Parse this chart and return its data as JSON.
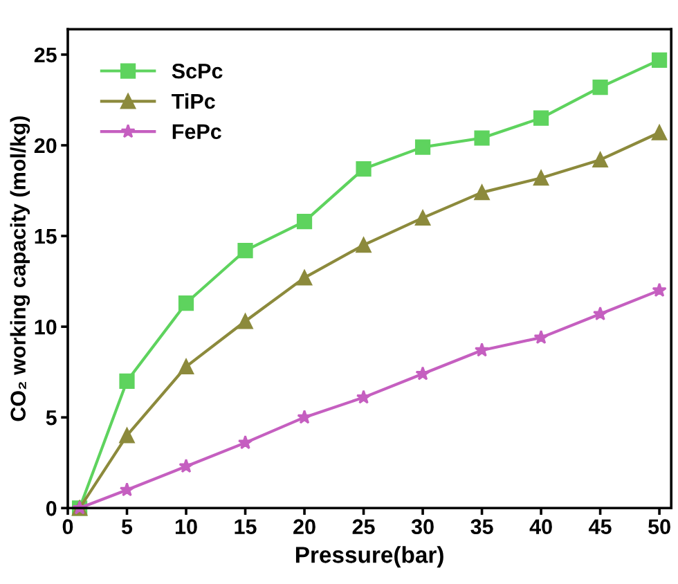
{
  "chart_data": {
    "type": "line",
    "xlabel": "Pressure(bar)",
    "ylabel": "CO₂ working capacity (mol/kg)",
    "xlim": [
      0,
      51
    ],
    "ylim": [
      0,
      26.4
    ],
    "xticks": [
      0,
      5,
      10,
      15,
      20,
      25,
      30,
      35,
      40,
      45,
      50
    ],
    "yticks": [
      0,
      5,
      10,
      15,
      20,
      25
    ],
    "grid": false,
    "legend": "top left",
    "line_style": "solid",
    "x": [
      1,
      5,
      10,
      15,
      20,
      25,
      30,
      35,
      40,
      45,
      50
    ],
    "series": [
      {
        "name": "ScPc",
        "color": "#5ed35e",
        "marker": "square",
        "values": [
          0,
          7.0,
          11.3,
          14.2,
          15.8,
          18.7,
          19.9,
          20.4,
          21.5,
          23.2,
          24.7
        ]
      },
      {
        "name": "TiPc",
        "color": "#8c8a3c",
        "marker": "triangle",
        "values": [
          0,
          4.0,
          7.8,
          10.3,
          12.7,
          14.5,
          16.0,
          17.4,
          18.2,
          19.2,
          20.7
        ]
      },
      {
        "name": "FePc",
        "color": "#c55fc0",
        "marker": "star",
        "values": [
          0,
          1.0,
          2.3,
          3.6,
          5.0,
          6.1,
          7.4,
          8.7,
          9.4,
          10.7,
          12.0
        ]
      }
    ]
  }
}
